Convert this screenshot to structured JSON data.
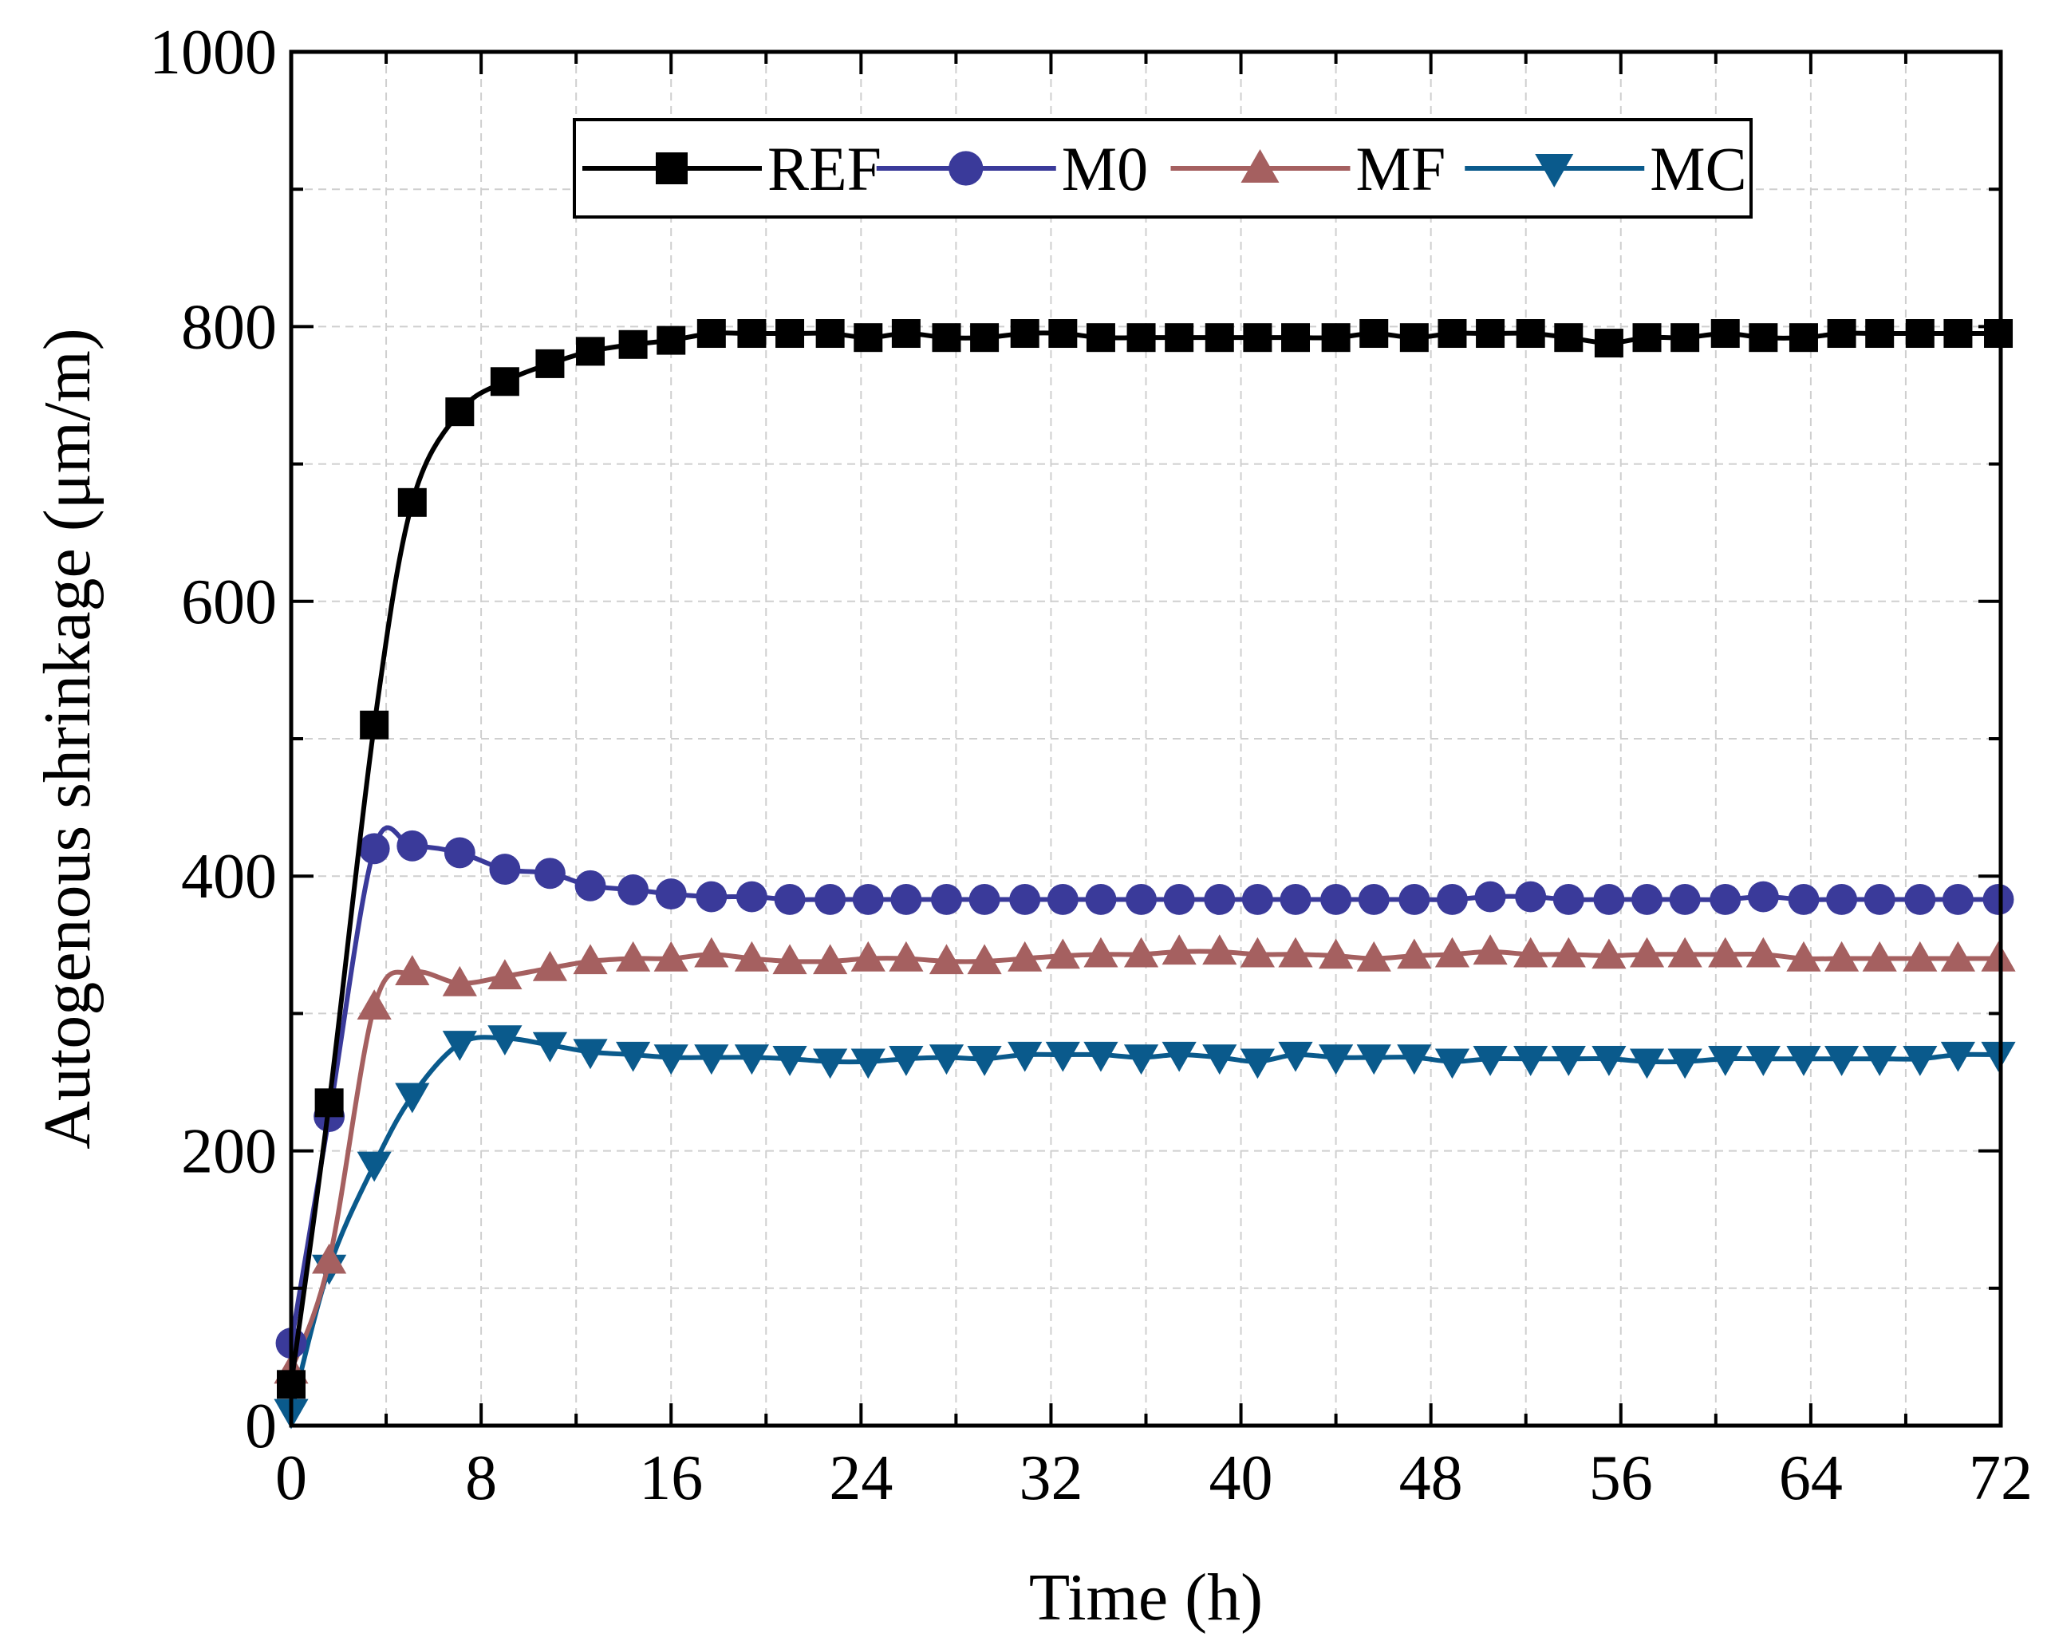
{
  "chart_data": {
    "type": "line",
    "title": "",
    "xlabel": "Time (h)",
    "ylabel": "Autogenous shrinkage (μm/m)",
    "xlim": [
      0,
      72
    ],
    "ylim": [
      0,
      1000
    ],
    "xticks": [
      0,
      8,
      16,
      24,
      32,
      40,
      48,
      56,
      64,
      72
    ],
    "yticks": [
      0,
      200,
      400,
      600,
      800,
      1000
    ],
    "grid": true,
    "legend_position": "top-center",
    "x": [
      0,
      1.6,
      3.5,
      5.1,
      7.1,
      9.0,
      10.9,
      12.6,
      14.4,
      16.0,
      17.7,
      19.4,
      21.0,
      22.7,
      24.3,
      25.9,
      27.6,
      29.2,
      30.9,
      32.5,
      34.1,
      35.8,
      37.4,
      39.1,
      40.7,
      42.3,
      44.0,
      45.6,
      47.3,
      48.9,
      50.5,
      52.2,
      53.8,
      55.5,
      57.1,
      58.7,
      60.4,
      62.0,
      63.7,
      65.3,
      66.9,
      68.6,
      70.2,
      71.9
    ],
    "series": [
      {
        "name": "REF",
        "color": "#000000",
        "marker": "square",
        "values": [
          30,
          235,
          510,
          672,
          738,
          760,
          773,
          782,
          787,
          790,
          795,
          795,
          795,
          795,
          792,
          795,
          792,
          792,
          795,
          795,
          792,
          792,
          792,
          792,
          792,
          792,
          792,
          795,
          792,
          795,
          795,
          795,
          792,
          788,
          792,
          792,
          795,
          792,
          792,
          795,
          795,
          795,
          795,
          795
        ]
      },
      {
        "name": "M0",
        "color": "#3a3a9a",
        "marker": "circle",
        "values": [
          60,
          225,
          420,
          422,
          417,
          405,
          402,
          393,
          390,
          387,
          385,
          385,
          383,
          383,
          383,
          383,
          383,
          383,
          383,
          383,
          383,
          383,
          383,
          383,
          383,
          383,
          383,
          383,
          383,
          383,
          385,
          385,
          383,
          383,
          383,
          383,
          383,
          385,
          383,
          383,
          383,
          383,
          383,
          383
        ]
      },
      {
        "name": "MF",
        "color": "#a56060",
        "marker": "triangle-up",
        "values": [
          40,
          120,
          305,
          330,
          322,
          327,
          333,
          338,
          340,
          340,
          343,
          340,
          338,
          338,
          340,
          340,
          338,
          338,
          340,
          342,
          343,
          343,
          345,
          345,
          343,
          343,
          342,
          340,
          342,
          343,
          345,
          343,
          343,
          342,
          343,
          343,
          343,
          343,
          340,
          340,
          340,
          340,
          340,
          340
        ]
      },
      {
        "name": "MC",
        "color": "#0a5a8c",
        "marker": "triangle-down",
        "values": [
          10,
          115,
          190,
          240,
          278,
          282,
          277,
          272,
          270,
          268,
          268,
          268,
          267,
          265,
          265,
          267,
          268,
          267,
          270,
          270,
          270,
          268,
          270,
          268,
          265,
          270,
          268,
          268,
          268,
          265,
          267,
          267,
          267,
          267,
          265,
          265,
          267,
          267,
          267,
          267,
          267,
          267,
          270,
          270
        ]
      }
    ]
  }
}
